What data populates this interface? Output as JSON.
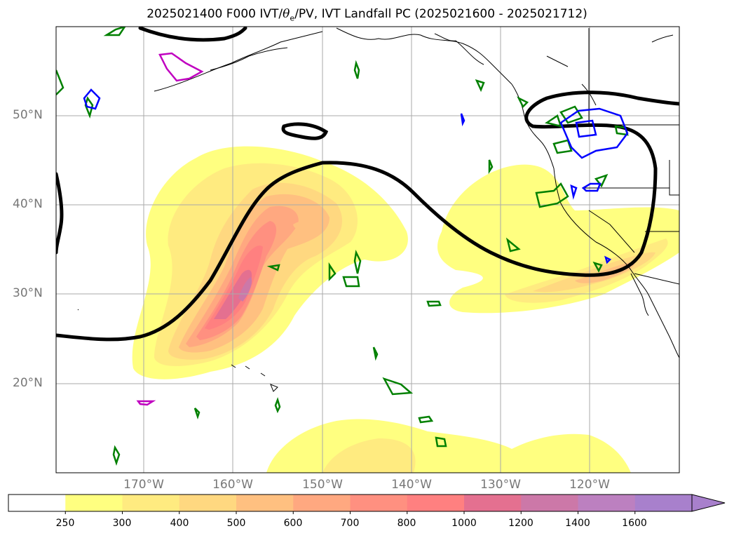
{
  "title": {
    "prefix": "2025021400 F000 IVT/",
    "theta": "θ",
    "sub": "e",
    "suffix": "/PV, IVT Landfall PC (2025021600 - 2025021712)"
  },
  "map": {
    "lat_labels": [
      "50°N",
      "40°N",
      "30°N",
      "20°N"
    ],
    "lon_labels": [
      "170°W",
      "160°W",
      "150°W",
      "140°W",
      "130°W",
      "120°W"
    ],
    "gridlines": true
  },
  "colorbar": {
    "labels": [
      "250",
      "300",
      "400",
      "500",
      "600",
      "700",
      "800",
      "1000",
      "1200",
      "1400",
      "1600"
    ],
    "colors": [
      "#ffffff",
      "#ffff80",
      "#ffeb80",
      "#ffd880",
      "#ffc080",
      "#ffa880",
      "#ff9080",
      "#ff8080",
      "#e47090",
      "#cc78a8",
      "#bc80c0",
      "#a880cc"
    ],
    "extend": "max"
  },
  "contour_colors": {
    "ivt_outline": "#000000",
    "green": "#008000",
    "blue": "#0000ff",
    "magenta": "#c000c0"
  }
}
